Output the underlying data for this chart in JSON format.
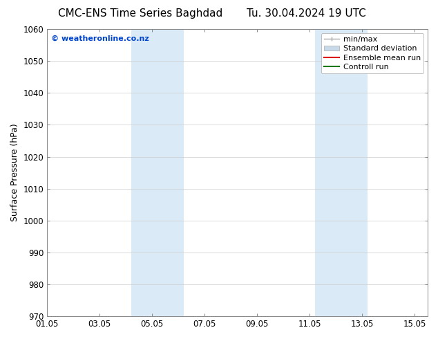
{
  "title_left": "CMC-ENS Time Series Baghdad",
  "title_right": "Tu. 30.04.2024 19 UTC",
  "ylabel": "Surface Pressure (hPa)",
  "ylim": [
    970,
    1060
  ],
  "yticks": [
    970,
    980,
    990,
    1000,
    1010,
    1020,
    1030,
    1040,
    1050,
    1060
  ],
  "xlim_start": 0,
  "xlim_end": 14.5,
  "xtick_positions": [
    0,
    2,
    4,
    6,
    8,
    10,
    12,
    14
  ],
  "xtick_labels": [
    "01.05",
    "03.05",
    "05.05",
    "07.05",
    "09.05",
    "11.05",
    "13.05",
    "15.05"
  ],
  "shaded_regions": [
    {
      "xmin": 3.2,
      "xmax": 5.2
    },
    {
      "xmin": 10.2,
      "xmax": 12.2
    }
  ],
  "shaded_color": "#daeaf7",
  "watermark_text": "© weatheronline.co.nz",
  "watermark_color": "#0044cc",
  "bg_color": "#ffffff",
  "grid_color": "#cccccc",
  "legend_items": [
    {
      "label": "min/max",
      "color": "#aaaaaa",
      "type": "minmax"
    },
    {
      "label": "Standard deviation",
      "color": "#c8daea",
      "type": "patch"
    },
    {
      "label": "Ensemble mean run",
      "color": "#dd0000",
      "type": "line"
    },
    {
      "label": "Controll run",
      "color": "#007700",
      "type": "line"
    }
  ],
  "title_fontsize": 11,
  "axis_fontsize": 9,
  "tick_fontsize": 8.5,
  "legend_fontsize": 8
}
